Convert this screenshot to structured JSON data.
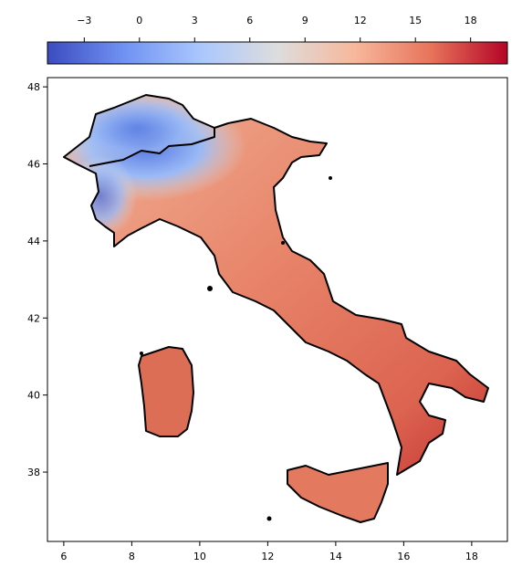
{
  "colorbar": {
    "lim": [
      -5,
      20
    ],
    "ticks": [
      {
        "value": -3,
        "label": "−3"
      },
      0,
      3,
      6,
      9,
      12,
      15,
      18
    ],
    "colors": [
      "#3b4cc0",
      "#7092f3",
      "#aac7fd",
      "#dddddd",
      "#f7b89c",
      "#e7745b",
      "#b40426"
    ]
  },
  "axes": {
    "xlim": [
      5.52,
      19.05
    ],
    "ylim": [
      36.2,
      48.24
    ],
    "xticks": [
      6,
      8,
      10,
      12,
      14,
      16,
      18
    ],
    "yticks": [
      38,
      40,
      42,
      44,
      46,
      48
    ]
  }
}
